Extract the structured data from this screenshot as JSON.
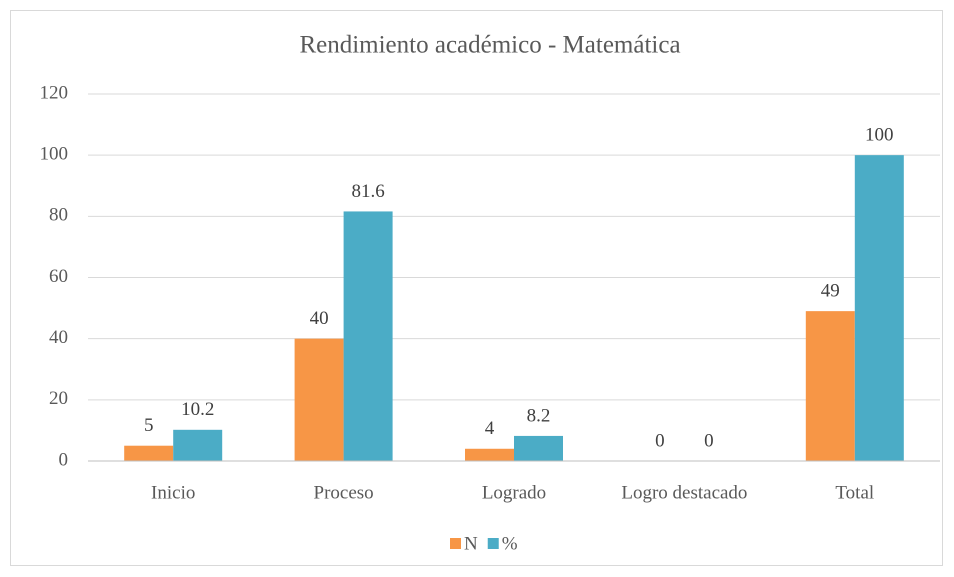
{
  "chart_data": {
    "type": "bar",
    "title": "Rendimiento académico - Matemática",
    "categories": [
      "Inicio",
      "Proceso",
      "Logrado",
      "Logro destacado",
      "Total"
    ],
    "series": [
      {
        "name": "N",
        "color": "#f79646",
        "values": [
          5,
          40,
          4,
          0,
          49
        ]
      },
      {
        "name": "%",
        "color": "#4bacc6",
        "values": [
          10.2,
          81.6,
          8.2,
          0,
          100
        ]
      }
    ],
    "ylim": [
      0,
      120
    ],
    "yticks": [
      0,
      20,
      40,
      60,
      80,
      100,
      120
    ],
    "grid": true,
    "legend": "bottom"
  }
}
